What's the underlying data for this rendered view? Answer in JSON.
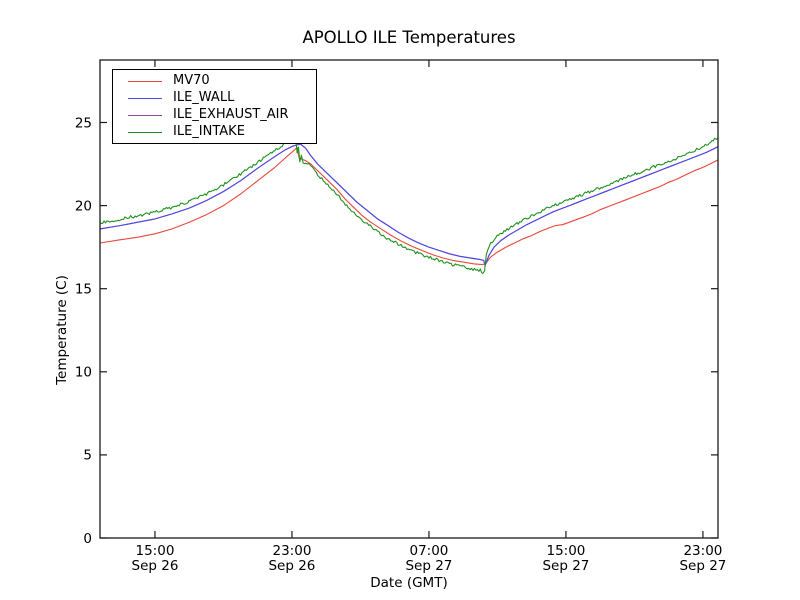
{
  "chart_data": {
    "type": "line",
    "title": "APOLLO ILE Temperatures",
    "xlabel": "Date (GMT)",
    "ylabel": "Temperature (C)",
    "x_units": "hours since Sep 26 00:00 GMT",
    "xlim": [
      11.79,
      47.88
    ],
    "ylim": [
      0,
      28.76
    ],
    "grid": false,
    "legend_position": "upper left",
    "tick_direction": "in",
    "x_ticks": [
      {
        "t": 15,
        "time": "15:00",
        "date": "Sep 26"
      },
      {
        "t": 23,
        "time": "23:00",
        "date": "Sep 26"
      },
      {
        "t": 31,
        "time": "07:00",
        "date": "Sep 27"
      },
      {
        "t": 39,
        "time": "15:00",
        "date": "Sep 27"
      },
      {
        "t": 47,
        "time": "23:00",
        "date": "Sep 27"
      }
    ],
    "y_ticks": [
      0,
      5,
      10,
      15,
      20,
      25
    ],
    "legend_order": [
      "MV70",
      "ILE_WALL",
      "ILE_EXHAUST_AIR",
      "ILE_INTAKE"
    ],
    "draw_order": [
      "MV70",
      "ILE_EXHAUST_AIR",
      "ILE_WALL",
      "ILE_INTAKE"
    ],
    "series": [
      {
        "name": "MV70",
        "color": "#e8483b",
        "noise": 0,
        "points": [
          [
            11.79,
            17.75
          ],
          [
            13,
            17.95
          ],
          [
            14,
            18.1
          ],
          [
            15,
            18.3
          ],
          [
            16,
            18.6
          ],
          [
            17,
            19.0
          ],
          [
            18,
            19.45
          ],
          [
            19,
            20.0
          ],
          [
            20,
            20.7
          ],
          [
            21,
            21.5
          ],
          [
            22,
            22.3
          ],
          [
            22.7,
            22.95
          ],
          [
            23.1,
            23.3
          ],
          [
            23.3,
            23.5
          ],
          [
            23.42,
            22.85
          ],
          [
            23.8,
            22.7
          ],
          [
            24.1,
            22.5
          ],
          [
            24.6,
            22.0
          ],
          [
            25.1,
            21.5
          ],
          [
            25.6,
            21.0
          ],
          [
            26.1,
            20.4
          ],
          [
            26.6,
            19.9
          ],
          [
            27.1,
            19.4
          ],
          [
            27.6,
            19.0
          ],
          [
            28.2,
            18.6
          ],
          [
            28.8,
            18.2
          ],
          [
            29.4,
            17.85
          ],
          [
            30,
            17.55
          ],
          [
            30.6,
            17.3
          ],
          [
            31.2,
            17.05
          ],
          [
            31.8,
            16.85
          ],
          [
            32.4,
            16.7
          ],
          [
            33,
            16.6
          ],
          [
            33.6,
            16.5
          ],
          [
            34.1,
            16.45
          ],
          [
            34.3,
            16.5
          ],
          [
            34.6,
            16.9
          ],
          [
            35,
            17.2
          ],
          [
            35.5,
            17.5
          ],
          [
            36,
            17.75
          ],
          [
            36.5,
            18.0
          ],
          [
            37,
            18.2
          ],
          [
            37.5,
            18.45
          ],
          [
            38,
            18.65
          ],
          [
            38.4,
            18.8
          ],
          [
            38.8,
            18.85
          ],
          [
            39.2,
            19.0
          ],
          [
            39.6,
            19.15
          ],
          [
            40,
            19.3
          ],
          [
            40.5,
            19.5
          ],
          [
            41,
            19.75
          ],
          [
            41.5,
            19.95
          ],
          [
            42,
            20.15
          ],
          [
            42.5,
            20.35
          ],
          [
            43,
            20.55
          ],
          [
            43.5,
            20.75
          ],
          [
            44,
            20.95
          ],
          [
            44.5,
            21.15
          ],
          [
            45,
            21.4
          ],
          [
            45.5,
            21.6
          ],
          [
            46,
            21.85
          ],
          [
            46.5,
            22.1
          ],
          [
            47,
            22.3
          ],
          [
            47.5,
            22.55
          ],
          [
            47.88,
            22.75
          ]
        ]
      },
      {
        "name": "ILE_WALL",
        "color": "#4a4ae8",
        "noise": 0,
        "points": [
          [
            11.79,
            18.6
          ],
          [
            13,
            18.8
          ],
          [
            14,
            19.0
          ],
          [
            15,
            19.2
          ],
          [
            16,
            19.5
          ],
          [
            17,
            19.85
          ],
          [
            18,
            20.3
          ],
          [
            19,
            20.85
          ],
          [
            20,
            21.5
          ],
          [
            21,
            22.25
          ],
          [
            22,
            22.95
          ],
          [
            22.6,
            23.35
          ],
          [
            23.1,
            23.6
          ],
          [
            23.5,
            23.7
          ],
          [
            23.8,
            23.45
          ],
          [
            24.1,
            23.0
          ],
          [
            24.5,
            22.5
          ],
          [
            25,
            22.0
          ],
          [
            25.6,
            21.4
          ],
          [
            26.2,
            20.8
          ],
          [
            26.8,
            20.2
          ],
          [
            27.4,
            19.7
          ],
          [
            28,
            19.2
          ],
          [
            28.6,
            18.8
          ],
          [
            29.2,
            18.4
          ],
          [
            29.8,
            18.05
          ],
          [
            30.4,
            17.75
          ],
          [
            31,
            17.5
          ],
          [
            31.6,
            17.3
          ],
          [
            32.2,
            17.1
          ],
          [
            32.8,
            16.95
          ],
          [
            33.4,
            16.85
          ],
          [
            34,
            16.75
          ],
          [
            34.2,
            16.7
          ],
          [
            34.28,
            16.4
          ],
          [
            34.5,
            17.0
          ],
          [
            34.8,
            17.5
          ],
          [
            35.2,
            17.9
          ],
          [
            35.7,
            18.25
          ],
          [
            36.2,
            18.55
          ],
          [
            36.7,
            18.85
          ],
          [
            37.2,
            19.1
          ],
          [
            37.7,
            19.35
          ],
          [
            38.2,
            19.6
          ],
          [
            38.7,
            19.8
          ],
          [
            39.2,
            20.0
          ],
          [
            39.7,
            20.2
          ],
          [
            40.2,
            20.4
          ],
          [
            40.7,
            20.6
          ],
          [
            41.2,
            20.8
          ],
          [
            41.7,
            21.0
          ],
          [
            42.2,
            21.2
          ],
          [
            42.7,
            21.4
          ],
          [
            43.2,
            21.6
          ],
          [
            43.7,
            21.8
          ],
          [
            44.2,
            22.0
          ],
          [
            44.7,
            22.2
          ],
          [
            45.2,
            22.4
          ],
          [
            45.7,
            22.6
          ],
          [
            46.2,
            22.8
          ],
          [
            46.7,
            23.0
          ],
          [
            47.2,
            23.2
          ],
          [
            47.6,
            23.4
          ],
          [
            47.88,
            23.55
          ]
        ]
      },
      {
        "name": "ILE_EXHAUST_AIR",
        "color": "#9944aa",
        "noise": 0,
        "points_same_as": "ILE_WALL"
      },
      {
        "name": "ILE_INTAKE",
        "color": "#1f921f",
        "noise": 0.09,
        "points": [
          [
            11.79,
            18.95
          ],
          [
            13,
            19.2
          ],
          [
            14,
            19.4
          ],
          [
            15,
            19.6
          ],
          [
            16,
            19.9
          ],
          [
            17,
            20.25
          ],
          [
            18,
            20.7
          ],
          [
            19,
            21.25
          ],
          [
            20,
            21.9
          ],
          [
            21,
            22.6
          ],
          [
            22,
            23.3
          ],
          [
            22.6,
            23.75
          ],
          [
            23.0,
            24.1
          ],
          [
            23.2,
            24.25
          ],
          [
            23.3,
            23.2
          ],
          [
            23.38,
            23.6
          ],
          [
            23.46,
            22.6
          ],
          [
            23.55,
            23.0
          ],
          [
            23.65,
            22.6
          ],
          [
            23.8,
            22.6
          ],
          [
            24.1,
            22.4
          ],
          [
            24.5,
            21.9
          ],
          [
            25,
            21.3
          ],
          [
            25.6,
            20.7
          ],
          [
            26.2,
            20.0
          ],
          [
            26.8,
            19.4
          ],
          [
            27.4,
            18.9
          ],
          [
            28,
            18.4
          ],
          [
            28.6,
            18.0
          ],
          [
            29.2,
            17.7
          ],
          [
            29.8,
            17.4
          ],
          [
            30.4,
            17.1
          ],
          [
            31,
            16.9
          ],
          [
            31.6,
            16.7
          ],
          [
            32.2,
            16.5
          ],
          [
            32.8,
            16.35
          ],
          [
            33.4,
            16.2
          ],
          [
            34,
            16.1
          ],
          [
            34.15,
            15.95
          ],
          [
            34.25,
            16.05
          ],
          [
            34.35,
            17.1
          ],
          [
            34.6,
            17.7
          ],
          [
            34.9,
            18.1
          ],
          [
            35.3,
            18.4
          ],
          [
            35.8,
            18.7
          ],
          [
            36.3,
            19.0
          ],
          [
            36.8,
            19.3
          ],
          [
            37.3,
            19.55
          ],
          [
            37.8,
            19.8
          ],
          [
            38.3,
            20.0
          ],
          [
            38.8,
            20.2
          ],
          [
            39.3,
            20.4
          ],
          [
            39.8,
            20.6
          ],
          [
            40.3,
            20.8
          ],
          [
            40.8,
            21.0
          ],
          [
            41.3,
            21.2
          ],
          [
            41.8,
            21.4
          ],
          [
            42.3,
            21.6
          ],
          [
            42.8,
            21.8
          ],
          [
            43.3,
            22.0
          ],
          [
            43.8,
            22.2
          ],
          [
            44.3,
            22.4
          ],
          [
            44.8,
            22.6
          ],
          [
            45.3,
            22.8
          ],
          [
            45.8,
            23.0
          ],
          [
            46.3,
            23.2
          ],
          [
            46.8,
            23.45
          ],
          [
            47.3,
            23.7
          ],
          [
            47.6,
            23.9
          ],
          [
            47.88,
            24.1
          ]
        ]
      }
    ]
  }
}
